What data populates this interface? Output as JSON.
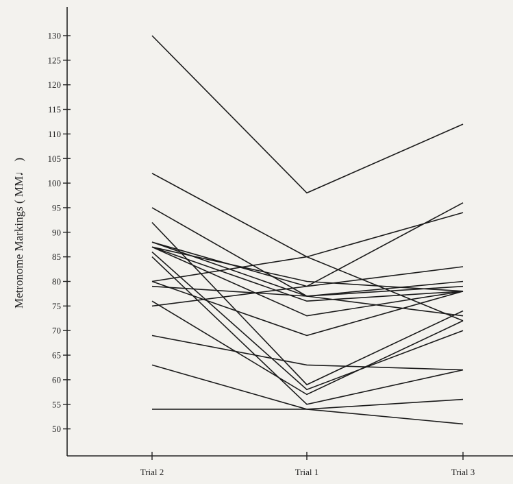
{
  "chart_data": {
    "type": "line",
    "title": "",
    "xlabel": "",
    "ylabel": "Metronome Markings ( MM♩ )",
    "categories": [
      "Trial 2",
      "Trial 1",
      "Trial 3"
    ],
    "ylim": [
      43,
      140
    ],
    "yticks": [
      50,
      55,
      60,
      65,
      70,
      75,
      80,
      85,
      90,
      95,
      100,
      105,
      110,
      115,
      120,
      125,
      130
    ],
    "grid": false,
    "legend": "none",
    "line_color": "#1a1a1a",
    "series": [
      {
        "values": [
          130,
          98,
          112
        ]
      },
      {
        "values": [
          102,
          85,
          72
        ]
      },
      {
        "values": [
          95,
          77,
          80
        ]
      },
      {
        "values": [
          92,
          59,
          74
        ]
      },
      {
        "values": [
          88,
          79,
          96
        ]
      },
      {
        "values": [
          88,
          77,
          79
        ]
      },
      {
        "values": [
          87,
          76,
          78
        ]
      },
      {
        "values": [
          87,
          80,
          78
        ]
      },
      {
        "values": [
          87,
          73,
          78
        ]
      },
      {
        "values": [
          86,
          58,
          70
        ]
      },
      {
        "values": [
          85,
          55,
          62
        ]
      },
      {
        "values": [
          80,
          85,
          94
        ]
      },
      {
        "values": [
          80,
          69,
          78
        ]
      },
      {
        "values": [
          79,
          77,
          73
        ]
      },
      {
        "values": [
          76,
          57,
          72
        ]
      },
      {
        "values": [
          75,
          79,
          83
        ]
      },
      {
        "values": [
          69,
          63,
          62
        ]
      },
      {
        "values": [
          63,
          54,
          51
        ]
      },
      {
        "values": [
          54,
          54,
          56
        ]
      }
    ]
  }
}
